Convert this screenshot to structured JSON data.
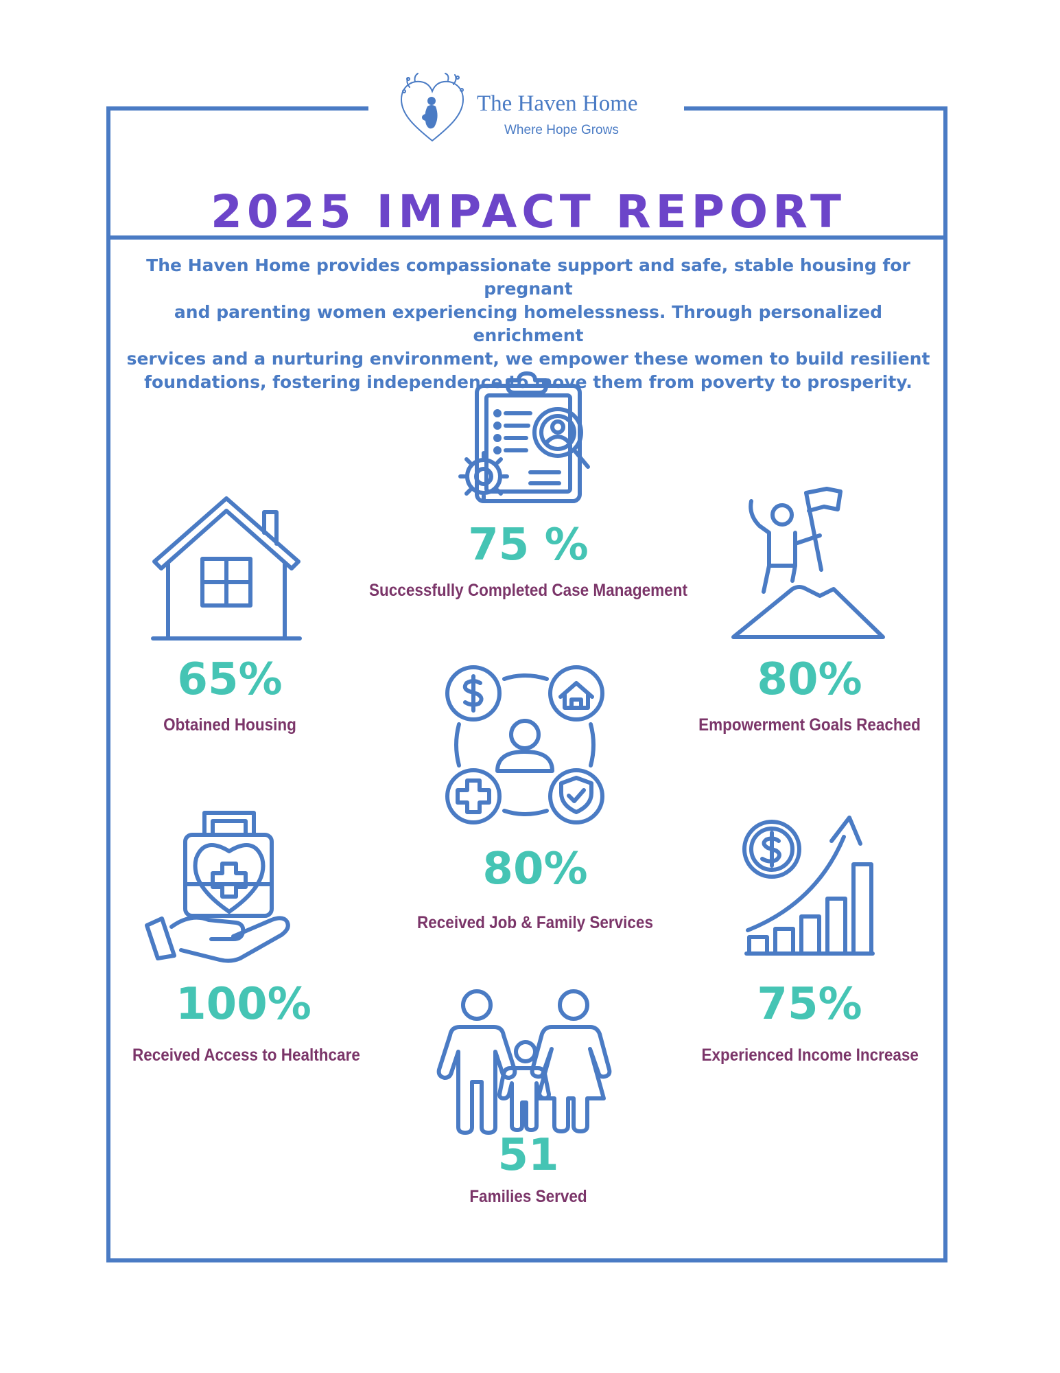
{
  "brand": {
    "name": "The Haven Home",
    "tagline": "Where Hope Grows"
  },
  "report": {
    "title": "2025 IMPACT REPORT",
    "intro_lines": [
      "The Haven Home provides compassionate support and safe, stable housing for pregnant",
      "and parenting women experiencing homelessness. Through personalized enrichment",
      "services and a nurturing environment, we empower these women to build resilient",
      "foundations, fostering independence to move them from poverty to prosperity."
    ]
  },
  "stats": [
    {
      "value": "75 %",
      "label": "Successfully Completed Case Management",
      "icon": "clipboard-search-gear-icon"
    },
    {
      "value": "65%",
      "label": "Obtained Housing",
      "icon": "house-icon"
    },
    {
      "value": "80%",
      "label": "Empowerment Goals Reached",
      "icon": "climber-flag-icon"
    },
    {
      "value": "80%",
      "label": "Received Job & Family Services",
      "icon": "services-network-icon"
    },
    {
      "value": "100%",
      "label": "Received Access to Healthcare",
      "icon": "healthcare-hand-icon"
    },
    {
      "value": "75%",
      "label": "Experienced Income Increase",
      "icon": "income-growth-icon"
    },
    {
      "value": "51",
      "label": "Families Served",
      "icon": "family-icon"
    }
  ],
  "colors": {
    "frame": "#4a7bc4",
    "title": "#6c45c9",
    "stat_value": "#45c4b4",
    "stat_label": "#7b3569"
  }
}
